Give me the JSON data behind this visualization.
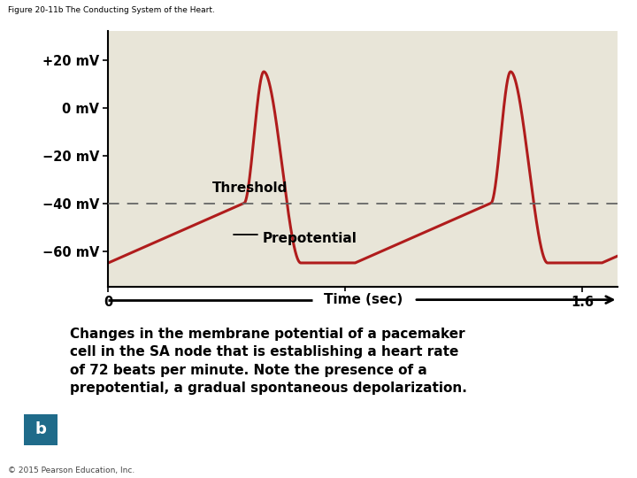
{
  "title": "Figure 20-11b The Conducting System of the Heart.",
  "background_color": "#ffffff",
  "plot_bg_color": "#e8e5d8",
  "line_color": "#b01c1c",
  "threshold_color": "#666666",
  "threshold_value": -40,
  "yticks": [
    20,
    0,
    -20,
    -40,
    -60
  ],
  "ylabels": [
    "+20 mV",
    "0 mV",
    "−20 mV",
    "−40 mV",
    "−60 mV"
  ],
  "ylim": [
    -75,
    32
  ],
  "xlim": [
    0,
    1.72
  ],
  "xticks": [
    0,
    0.8,
    1.6
  ],
  "xlabel": "Time (sec)",
  "threshold_label": "Threshold",
  "prepotential_label": "Prepotential",
  "caption_b_color": "#1f6b8a",
  "caption_text": "Changes in the membrane potential of a pacemaker\ncell in the SA node that is establishing a heart rate\nof 72 beats per minute. Note the presence of a\nprepotential, a gradual spontaneous depolarization.",
  "copyright": "© 2015 Pearson Education, Inc.",
  "period": 0.833
}
